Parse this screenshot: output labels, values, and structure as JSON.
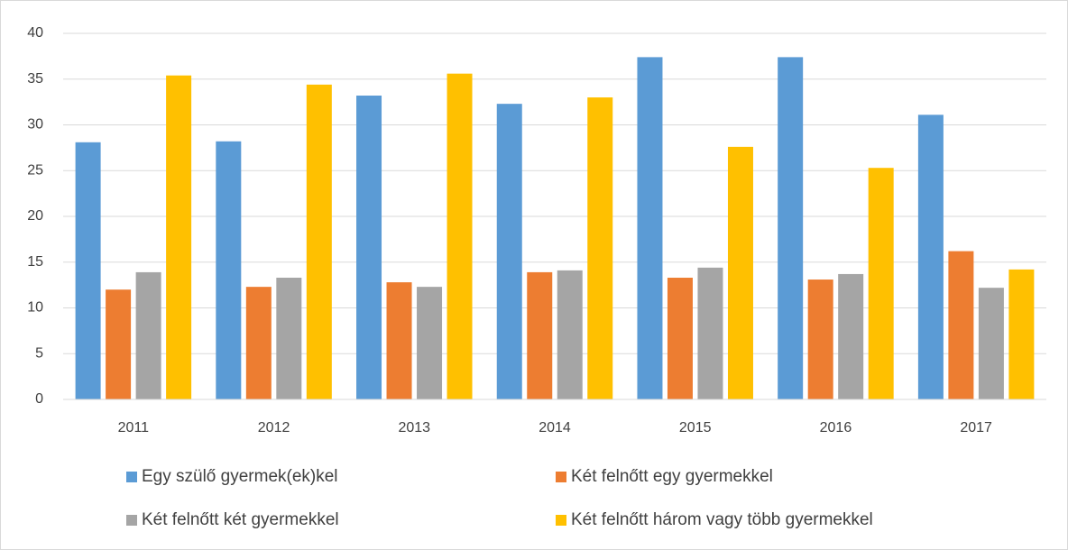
{
  "chart_data": {
    "type": "bar",
    "categories": [
      "2011",
      "2012",
      "2013",
      "2014",
      "2015",
      "2016",
      "2017"
    ],
    "series": [
      {
        "name": "Egy szülő gyermek(ek)kel",
        "color": "#5b9bd5",
        "values": [
          28.1,
          28.2,
          33.2,
          32.3,
          37.4,
          37.4,
          31.1
        ]
      },
      {
        "name": "Két felnőtt egy gyermekkel",
        "color": "#ed7d31",
        "values": [
          12.0,
          12.3,
          12.8,
          13.9,
          13.3,
          13.1,
          16.2
        ]
      },
      {
        "name": "Két felnőtt két gyermekkel",
        "color": "#a5a5a5",
        "values": [
          13.9,
          13.3,
          12.3,
          14.1,
          14.4,
          13.7,
          12.2
        ]
      },
      {
        "name": "Két felnőtt három vagy több gyermekkel",
        "color": "#ffc000",
        "values": [
          35.4,
          34.4,
          35.6,
          33.0,
          27.6,
          25.3,
          14.2
        ]
      }
    ],
    "ylim": [
      0,
      40
    ],
    "yticks": [
      0,
      5,
      10,
      15,
      20,
      25,
      30,
      35,
      40
    ],
    "grid": true,
    "legend": "bottom"
  }
}
